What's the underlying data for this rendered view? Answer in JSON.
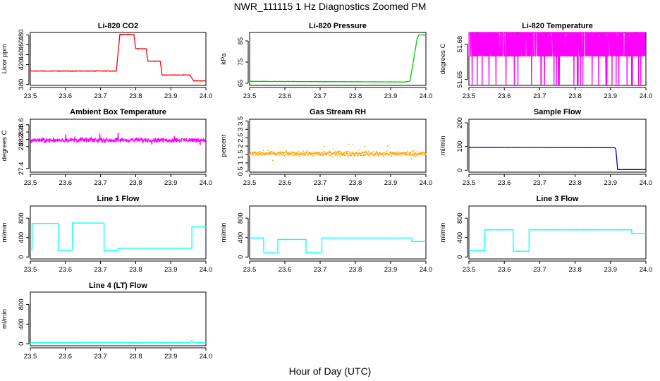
{
  "figure": {
    "title": "NWR_111115  1 Hz Diagnostics Zoomed PM",
    "xlabel": "Hour of Day (UTC)"
  },
  "chart_data": [
    {
      "id": "co2",
      "type": "line",
      "title": "Li-820 CO2",
      "ylabel": "Licor ppm",
      "color": "#ff0000",
      "xlim": [
        23.5,
        24.0
      ],
      "ylim": [
        378,
        485
      ],
      "xticks": [
        23.5,
        23.6,
        23.7,
        23.8,
        23.9,
        24.0
      ],
      "yticks": [
        380,
        420,
        440,
        460,
        480
      ],
      "noise": 0.8,
      "segments": [
        [
          23.5,
          23.745,
          407
        ],
        [
          23.755,
          23.795,
          481
        ],
        [
          23.8,
          23.83,
          452
        ],
        [
          23.835,
          23.87,
          427
        ],
        [
          23.875,
          23.955,
          399
        ],
        [
          23.965,
          24.0,
          387
        ]
      ]
    },
    {
      "id": "pressure",
      "type": "line",
      "title": "Li-820 Pressure",
      "ylabel": "kPa",
      "color": "#00cc00",
      "xlim": [
        23.5,
        24.0
      ],
      "ylim": [
        64,
        89
      ],
      "xticks": [
        23.5,
        23.6,
        23.7,
        23.8,
        23.9,
        24.0
      ],
      "yticks": [
        65,
        75,
        85
      ],
      "noise": 0.1,
      "points": [
        [
          23.5,
          65.9
        ],
        [
          23.94,
          65.6
        ],
        [
          23.955,
          66.0
        ],
        [
          23.965,
          76
        ],
        [
          23.975,
          86
        ],
        [
          23.98,
          87.8
        ],
        [
          24.0,
          87.8
        ]
      ]
    },
    {
      "id": "licor-temp",
      "type": "line",
      "title": "Li-820 Temperature",
      "ylabel": "degrees C",
      "color": "#ff00ff",
      "xlim": [
        23.5,
        24.0
      ],
      "ylim": [
        51.645,
        51.69
      ],
      "xticks": [
        23.5,
        23.6,
        23.7,
        23.8,
        23.9,
        24.0
      ],
      "yticks": [
        51.65,
        51.68
      ],
      "style": "quantized",
      "levels": [
        51.69,
        51.67
      ],
      "dips": 51.645
    },
    {
      "id": "box-temp",
      "type": "line",
      "title": "Ambient Box Temperature",
      "ylabel": "degrees C",
      "color": "#ff00ff",
      "xlim": [
        23.5,
        24.0
      ],
      "ylim": [
        27.3,
        28.75
      ],
      "xticks": [
        23.5,
        23.6,
        23.7,
        23.8,
        23.9,
        24.0
      ],
      "yticks": [
        27.4,
        28.0,
        28.2,
        28.4,
        28.6
      ],
      "noise": 0.09,
      "spikes": 0.3,
      "points": [
        [
          23.5,
          28.18
        ],
        [
          24.0,
          28.18
        ]
      ]
    },
    {
      "id": "rh",
      "type": "scatter",
      "title": "Gas Stream RH",
      "ylabel": "percent",
      "color": "#ffa500",
      "xlim": [
        23.5,
        24.0
      ],
      "ylim": [
        0.45,
        3.6
      ],
      "xticks": [
        23.5,
        23.6,
        23.7,
        23.8,
        23.9,
        24.0
      ],
      "yticks": [
        0.5,
        1.0,
        1.5,
        2.0,
        2.5,
        3.0,
        3.5
      ],
      "noise": 0.2,
      "spikes": 1.0,
      "points": [
        [
          23.5,
          1.55
        ],
        [
          24.0,
          1.55
        ]
      ]
    },
    {
      "id": "sample-flow",
      "type": "line",
      "title": "Sample Flow",
      "ylabel": "ml/min",
      "color": "#0000cc",
      "xlim": [
        23.5,
        24.0
      ],
      "ylim": [
        -8,
        215
      ],
      "xticks": [
        23.5,
        23.6,
        23.7,
        23.8,
        23.9,
        24.0
      ],
      "yticks": [
        0,
        100,
        200
      ],
      "noise": 0.6,
      "points": [
        [
          23.5,
          97
        ],
        [
          23.91,
          95
        ],
        [
          23.915,
          92
        ],
        [
          23.92,
          3
        ],
        [
          24.0,
          3
        ]
      ]
    },
    {
      "id": "line1",
      "type": "line",
      "title": "Line 1 Flow",
      "ylabel": "ml/min",
      "color": "#00ffff",
      "xlim": [
        23.5,
        24.0
      ],
      "ylim": [
        -40,
        1050
      ],
      "xticks": [
        23.5,
        23.6,
        23.7,
        23.8,
        23.9,
        24.0
      ],
      "yticks": [
        0,
        400,
        800
      ],
      "noise": 5,
      "segments": [
        [
          23.5,
          23.505,
          150
        ],
        [
          23.505,
          23.58,
          690
        ],
        [
          23.58,
          23.62,
          140
        ],
        [
          23.62,
          23.71,
          700
        ],
        [
          23.71,
          23.75,
          130
        ],
        [
          23.75,
          23.96,
          180
        ],
        [
          23.96,
          24.0,
          620
        ]
      ]
    },
    {
      "id": "line2",
      "type": "line",
      "title": "Line 2 Flow",
      "ylabel": "ml/min",
      "color": "#00ffff",
      "xlim": [
        23.5,
        24.0
      ],
      "ylim": [
        -40,
        1050
      ],
      "xticks": [
        23.5,
        23.6,
        23.7,
        23.8,
        23.9,
        24.0
      ],
      "yticks": [
        0,
        400,
        800
      ],
      "noise": 5,
      "segments": [
        [
          23.5,
          23.54,
          390
        ],
        [
          23.54,
          23.58,
          90
        ],
        [
          23.58,
          23.66,
          360
        ],
        [
          23.66,
          23.705,
          90
        ],
        [
          23.705,
          23.96,
          390
        ],
        [
          23.96,
          24.0,
          320
        ]
      ]
    },
    {
      "id": "line3",
      "type": "line",
      "title": "Line 3 Flow",
      "ylabel": "ml/min",
      "color": "#00ffff",
      "xlim": [
        23.5,
        24.0
      ],
      "ylim": [
        -40,
        1050
      ],
      "xticks": [
        23.5,
        23.6,
        23.7,
        23.8,
        23.9,
        24.0
      ],
      "yticks": [
        0,
        400,
        800
      ],
      "noise": 6,
      "segments": [
        [
          23.5,
          23.545,
          130
        ],
        [
          23.545,
          23.625,
          560
        ],
        [
          23.625,
          23.67,
          120
        ],
        [
          23.67,
          23.96,
          560
        ],
        [
          23.96,
          24.0,
          480
        ]
      ]
    },
    {
      "id": "line4",
      "type": "line",
      "title": "Line 4 (LT) Flow",
      "ylabel": "ml/min",
      "color": "#00ffff",
      "xlim": [
        23.5,
        24.0
      ],
      "ylim": [
        -40,
        1050
      ],
      "xticks": [
        23.5,
        23.6,
        23.7,
        23.8,
        23.9,
        24.0
      ],
      "yticks": [
        0,
        400,
        800
      ],
      "noise": 1.5,
      "points": [
        [
          23.5,
          20
        ],
        [
          23.955,
          20
        ],
        [
          23.96,
          65
        ],
        [
          23.965,
          20
        ],
        [
          24.0,
          20
        ]
      ]
    }
  ]
}
